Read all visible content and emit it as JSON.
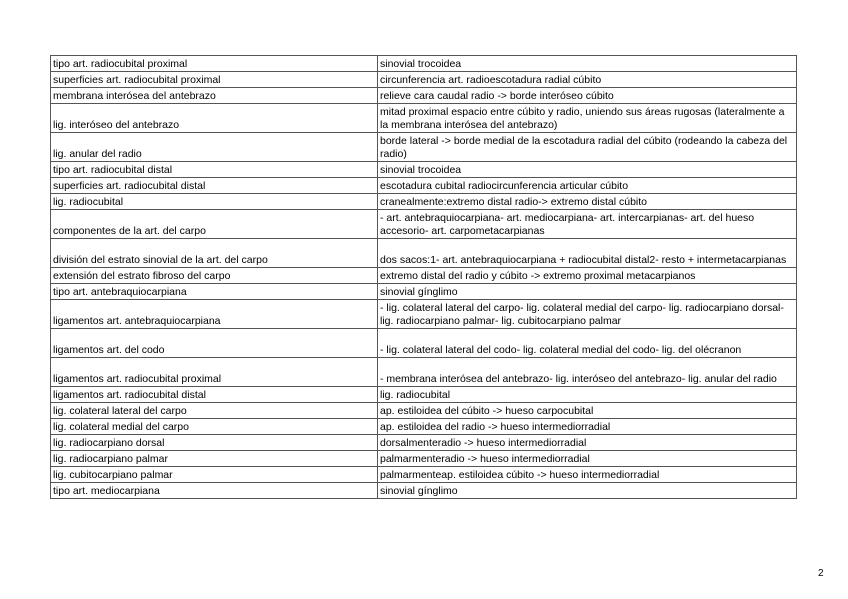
{
  "rows": [
    [
      "tipo art. radiocubital proximal",
      "sinovial trocoidea"
    ],
    [
      "superficies art. radiocubital proximal",
      "circunferencia art. radioescotadura radial cúbito"
    ],
    [
      "membrana interósea del antebrazo",
      "relieve cara caudal radio -> borde interóseo cúbito"
    ],
    [
      "lig. interóseo del antebrazo",
      "mitad proximal espacio entre cúbito y radio, uniendo sus áreas rugosas (lateralmente a la membrana interósea del antebrazo)"
    ],
    [
      "lig. anular del radio",
      "borde lateral -> borde medial de la escotadura radial del cúbito (rodeando la cabeza del radio)"
    ],
    [
      "tipo art. radiocubital distal",
      "sinovial trocoidea"
    ],
    [
      "superficies art. radiocubital distal",
      "escotadura cubital radiocircunferencia articular cúbito"
    ],
    [
      "lig. radiocubital",
      "cranealmente:extremo distal radio-> extremo distal cúbito"
    ],
    [
      "componentes de la art. del carpo",
      "- art. antebraquiocarpiana- art. mediocarpiana- art. intercarpianas- art. del hueso accesorio- art. carpometacarpianas"
    ],
    [
      "división del estrato sinovial de la art. del carpo",
      "dos sacos:1- art. antebraquiocarpiana + radiocubital distal2- resto + intermetacarpianas"
    ],
    [
      "extensión del estrato fibroso del carpo",
      "extremo distal del radio y cúbito -> extremo proximal metacarpianos"
    ],
    [
      "tipo art. antebraquiocarpiana",
      "sinovial gínglimo"
    ],
    [
      "ligamentos art. antebraquiocarpiana",
      "- lig. colateral lateral del carpo- lig. colateral medial del carpo- lig. radiocarpiano dorsal- lig. radiocarpiano palmar- lig. cubitocarpiano palmar"
    ],
    [
      "ligamentos art. del codo",
      "- lig. colateral lateral del codo- lig. colateral medial del codo- lig. del olécranon"
    ],
    [
      "ligamentos art. radiocubital proximal",
      "- membrana interósea del antebrazo- lig. interóseo del antebrazo- lig. anular del radio"
    ],
    [
      "ligamentos art. radiocubital distal",
      "lig. radiocubital"
    ],
    [
      "lig. colateral lateral del carpo",
      "ap. estiloidea del cúbito -> hueso carpocubital"
    ],
    [
      "lig. colateral medial del carpo",
      "ap. estiloidea del radio -> hueso intermediorradial"
    ],
    [
      "lig. radiocarpiano dorsal",
      "dorsalmenteradio -> hueso intermediorradial"
    ],
    [
      "lig. radiocarpiano palmar",
      "palmarmenteradio -> hueso intermediorradial"
    ],
    [
      "lig. cubitocarpiano palmar",
      "palmarmenteap. estiloidea cúbito -> hueso intermediorradial"
    ],
    [
      "tipo art. mediocarpiana",
      "sinovial gínglimo"
    ]
  ],
  "double_rows": [
    3,
    4,
    8,
    9,
    12,
    13,
    14
  ],
  "page_number": "2"
}
